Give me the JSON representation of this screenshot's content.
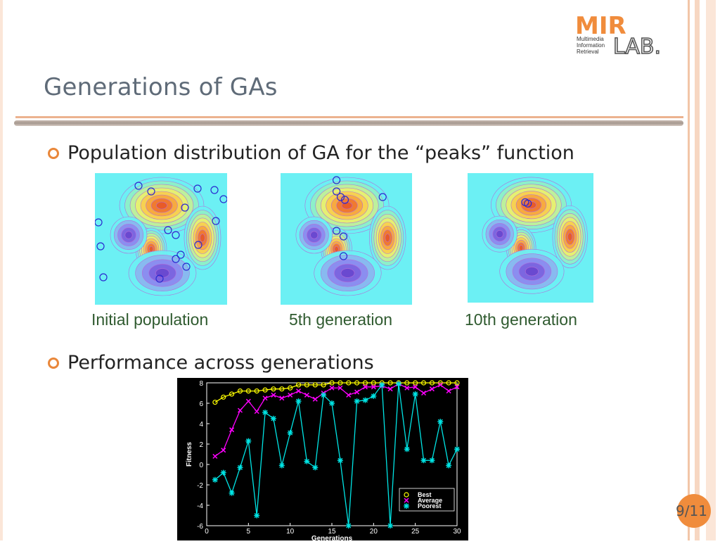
{
  "slide": {
    "title": "Generations of GAs",
    "bullets": [
      {
        "text": "Population distribution of GA for the “peaks” function"
      },
      {
        "text": "Performance across generations"
      }
    ],
    "captions": [
      "Initial population",
      "5th generation",
      "10th generation"
    ],
    "page_number": "9/11"
  },
  "logo": {
    "mark": "MIR",
    "sub1": "Multimedia",
    "sub2": "Information",
    "sub3": "Retrieval",
    "lab": "LAB."
  },
  "colors": {
    "accent": "#e9873a",
    "title": "#5f6b78",
    "caption": "#2f5a2f",
    "contour_bg": "#6cf0f4"
  },
  "chart_data": {
    "type": "line",
    "xlabel": "Generations",
    "ylabel": "Fitness",
    "xlim": [
      0,
      30
    ],
    "ylim": [
      -6,
      8
    ],
    "xticks": [
      0,
      5,
      10,
      15,
      20,
      25,
      30
    ],
    "yticks": [
      -6,
      -4,
      -2,
      0,
      2,
      4,
      6,
      8
    ],
    "legend_position": "bottom-right",
    "x": [
      1,
      2,
      3,
      4,
      5,
      6,
      7,
      8,
      9,
      10,
      11,
      12,
      13,
      14,
      15,
      16,
      17,
      18,
      19,
      20,
      21,
      22,
      23,
      24,
      25,
      26,
      27,
      28,
      29,
      30
    ],
    "series": [
      {
        "name": "Best",
        "marker": "circle",
        "color": "#ffff00",
        "values": [
          6.1,
          6.6,
          6.9,
          7.2,
          7.2,
          7.2,
          7.3,
          7.4,
          7.4,
          7.5,
          7.8,
          7.8,
          7.8,
          7.8,
          8.0,
          8.0,
          8.0,
          8.0,
          8.0,
          8.0,
          8.0,
          8.0,
          8.0,
          8.0,
          8.0,
          8.0,
          8.0,
          8.0,
          8.0,
          8.0
        ]
      },
      {
        "name": "Average",
        "marker": "x",
        "color": "#ff00ff",
        "values": [
          0.8,
          1.4,
          3.4,
          5.3,
          6.2,
          5.2,
          6.5,
          6.8,
          6.5,
          6.8,
          7.2,
          6.8,
          6.4,
          7.0,
          7.5,
          7.5,
          6.8,
          7.1,
          7.6,
          7.6,
          7.7,
          7.4,
          7.9,
          7.5,
          7.6,
          7.0,
          7.4,
          7.8,
          7.2,
          7.6
        ]
      },
      {
        "name": "Poorest",
        "marker": "star",
        "color": "#00e5e5",
        "values": [
          -1.5,
          -0.8,
          -2.8,
          -0.3,
          2.3,
          -5.0,
          5.1,
          4.5,
          -0.1,
          3.1,
          6.2,
          0.3,
          -0.3,
          6.8,
          6.0,
          0.4,
          -6.0,
          6.2,
          6.3,
          6.7,
          7.8,
          -6.0,
          7.9,
          1.5,
          6.9,
          0.4,
          0.4,
          4.2,
          -0.1,
          1.5
        ]
      }
    ]
  }
}
